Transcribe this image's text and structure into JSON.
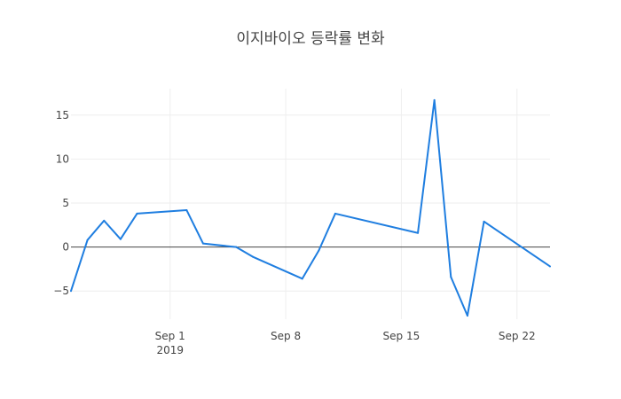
{
  "chart_data": {
    "type": "line",
    "title": "이지바이오 등락률 변화",
    "xlabel": "",
    "ylabel": "",
    "x_tick_labels": [
      {
        "date": "2019-09-01",
        "label": "Sep 1",
        "sublabel": "2019"
      },
      {
        "date": "2019-09-08",
        "label": "Sep 8",
        "sublabel": ""
      },
      {
        "date": "2019-09-15",
        "label": "Sep 15",
        "sublabel": ""
      },
      {
        "date": "2019-09-22",
        "label": "Sep 22",
        "sublabel": ""
      }
    ],
    "y_ticks": [
      {
        "value": -5,
        "label": "−5"
      },
      {
        "value": 0,
        "label": "0"
      },
      {
        "value": 5,
        "label": "5"
      },
      {
        "value": 10,
        "label": "10"
      },
      {
        "value": 15,
        "label": "15"
      }
    ],
    "xlim": [
      "2019-08-26",
      "2019-09-24"
    ],
    "ylim": [
      -8.2,
      18.0
    ],
    "grid": true,
    "zero_line": true,
    "series": [
      {
        "color": "#1f7ee0",
        "x": [
          "2019-08-26",
          "2019-08-27",
          "2019-08-28",
          "2019-08-29",
          "2019-08-30",
          "2019-09-02",
          "2019-09-03",
          "2019-09-05",
          "2019-09-06",
          "2019-09-09",
          "2019-09-10",
          "2019-09-11",
          "2019-09-16",
          "2019-09-17",
          "2019-09-18",
          "2019-09-19",
          "2019-09-20",
          "2019-09-24"
        ],
        "y": [
          -5.0,
          0.8,
          3.0,
          0.9,
          3.8,
          4.2,
          0.4,
          0.0,
          -1.1,
          -3.6,
          -0.4,
          3.8,
          1.6,
          16.7,
          -3.4,
          -7.8,
          2.9,
          -2.2
        ]
      }
    ]
  }
}
